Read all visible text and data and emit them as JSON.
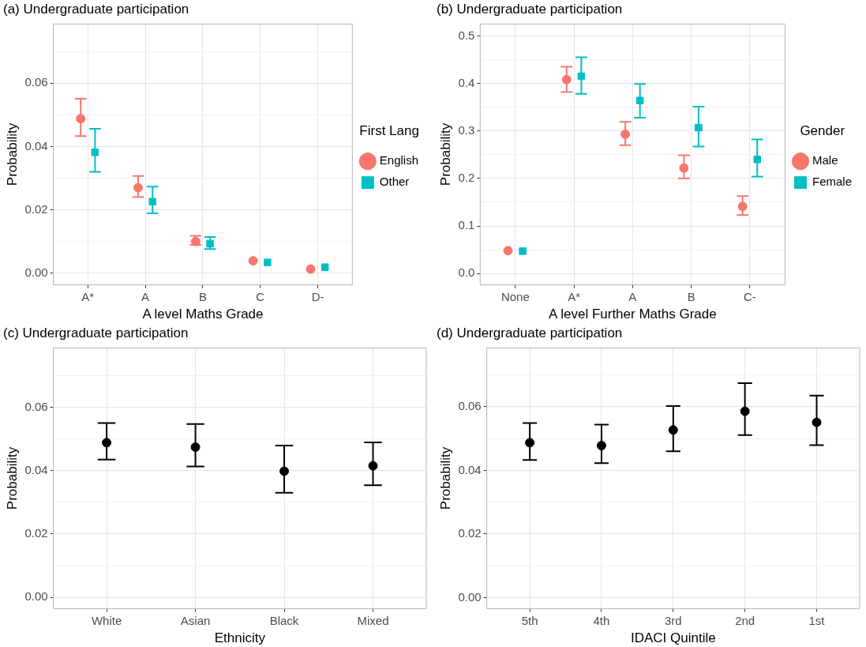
{
  "chart_data": [
    {
      "type": "scatter",
      "title": "(a) Undergraduate participation",
      "xlabel": "A level Maths Grade",
      "ylabel": "Probability",
      "legend_title": "First Lang",
      "legend": "right",
      "grid": true,
      "categories": [
        "A*",
        "A",
        "B",
        "C",
        "D-"
      ],
      "ylim": [
        -0.0037,
        0.0787
      ],
      "yticks": [
        {
          "value": 0,
          "label": "0.00"
        },
        {
          "value": 0.01,
          "label": null
        },
        0.02,
        {
          "value": 0.03,
          "label": null
        },
        0.04,
        {
          "value": 0.05,
          "label": null
        },
        0.06,
        {
          "value": 0.07,
          "label": null
        }
      ],
      "series": [
        {
          "name": "English",
          "color": "#f8766d",
          "marker": "circle",
          "values": [
            0.0488,
            0.027,
            0.01,
            0.0039,
            0.0013
          ],
          "errors": [
            [
              0.0433,
              0.0551
            ],
            [
              0.024,
              0.0307
            ],
            [
              0.0089,
              0.0118
            ],
            null,
            null
          ]
        },
        {
          "name": "Other",
          "color": "#00bfc4",
          "marker": "square",
          "values": [
            0.0382,
            0.0226,
            0.0093,
            0.0034,
            0.0019
          ],
          "errors": [
            [
              0.032,
              0.0456
            ],
            [
              0.0189,
              0.0273
            ],
            [
              0.0076,
              0.0114
            ],
            null,
            null
          ]
        }
      ]
    },
    {
      "type": "scatter",
      "title": "(b) Undergraduate participation",
      "xlabel": "A level Further Maths Grade",
      "ylabel": "Probability",
      "legend_title": "Gender",
      "legend": "right",
      "grid": true,
      "categories": [
        "None",
        "A*",
        "A",
        "B",
        "C-"
      ],
      "ylim": [
        -0.024,
        0.525
      ],
      "yticks": [
        {
          "value": 0,
          "label": "0.0"
        },
        {
          "value": 0.05,
          "label": null
        },
        0.1,
        {
          "value": 0.15,
          "label": null
        },
        0.2,
        {
          "value": 0.25,
          "label": null
        },
        0.3,
        {
          "value": 0.35,
          "label": null
        },
        0.4,
        {
          "value": 0.45,
          "label": null
        },
        0.5
      ],
      "series": [
        {
          "name": "Male",
          "color": "#f8766d",
          "marker": "circle",
          "values": [
            0.048,
            0.408,
            0.293,
            0.222,
            0.141
          ],
          "errors": [
            null,
            [
              0.382,
              0.435
            ],
            [
              0.27,
              0.319
            ],
            [
              0.2,
              0.249
            ],
            [
              0.123,
              0.163
            ]
          ]
        },
        {
          "name": "Female",
          "color": "#00bfc4",
          "marker": "square",
          "values": [
            0.047,
            0.415,
            0.364,
            0.307,
            0.24
          ],
          "errors": [
            null,
            [
              0.378,
              0.455
            ],
            [
              0.328,
              0.399
            ],
            [
              0.267,
              0.351
            ],
            [
              0.204,
              0.282
            ]
          ]
        }
      ]
    },
    {
      "type": "scatter",
      "title": "(c) Undergraduate participation",
      "xlabel": "Ethnicity",
      "ylabel": "Probability",
      "grid": true,
      "categories": [
        "White",
        "Asian",
        "Black",
        "Mixed"
      ],
      "ylim": [
        -0.0036,
        0.0787
      ],
      "yticks": [
        {
          "value": 0,
          "label": "0.00"
        },
        {
          "value": 0.01,
          "label": null
        },
        0.02,
        {
          "value": 0.03,
          "label": null
        },
        0.04,
        {
          "value": 0.05,
          "label": null
        },
        0.06,
        {
          "value": 0.07,
          "label": null
        }
      ],
      "series": [
        {
          "color": "#000000",
          "marker": "circle",
          "values": [
            0.0488,
            0.0474,
            0.0398,
            0.0415
          ],
          "errors": [
            [
              0.0435,
              0.055
            ],
            [
              0.0413,
              0.0547
            ],
            [
              0.033,
              0.0479
            ],
            [
              0.0354,
              0.0489
            ]
          ]
        }
      ]
    },
    {
      "type": "scatter",
      "title": "(d) Undergraduate participation",
      "xlabel": "IDACI Quintile",
      "ylabel": "Probability",
      "grid": true,
      "categories": [
        "5th",
        "4th",
        "3rd",
        "2nd",
        "1st"
      ],
      "ylim": [
        -0.0035,
        0.0785
      ],
      "yticks": [
        {
          "value": 0,
          "label": "0.00"
        },
        {
          "value": 0.01,
          "label": null
        },
        0.02,
        {
          "value": 0.03,
          "label": null
        },
        0.04,
        {
          "value": 0.05,
          "label": null
        },
        0.06,
        {
          "value": 0.07,
          "label": null
        }
      ],
      "series": [
        {
          "color": "#000000",
          "marker": "circle",
          "values": [
            0.0487,
            0.0478,
            0.0527,
            0.0586,
            0.0551
          ],
          "errors": [
            [
              0.0433,
              0.0549
            ],
            [
              0.0423,
              0.0544
            ],
            [
              0.046,
              0.0602
            ],
            [
              0.0511,
              0.0674
            ],
            [
              0.0479,
              0.0635
            ]
          ]
        }
      ]
    }
  ]
}
